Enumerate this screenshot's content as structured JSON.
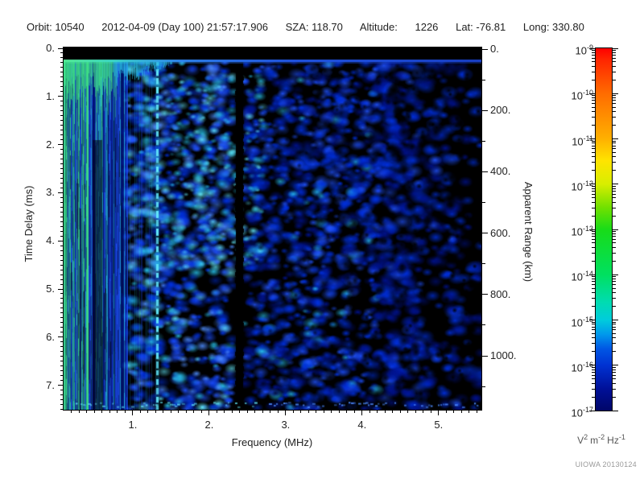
{
  "header": {
    "line": "Orbit: 10540      2012-04-09 (Day 100) 21:57:17.906      SZA: 118.70      Altitude:      1226      Lat: -76.81      Long: 330.80"
  },
  "chart_data": {
    "type": "heatmap",
    "xlabel": "Frequency (MHz)",
    "ylabel_left": "Time Delay (ms)",
    "ylabel_right": "Apparent Range (km)",
    "xlim_mhz": [
      0.1,
      5.56
    ],
    "ylim_left_ms": [
      0,
      7.5
    ],
    "ylim_right_km": [
      0,
      1180
    ],
    "x_ticks": {
      "values": [
        1,
        2,
        3,
        4,
        5
      ],
      "labels": [
        "1.",
        "2.",
        "3.",
        "4.",
        "5."
      ],
      "minor_step_mhz": 0.1
    },
    "y_left_ticks": {
      "values": [
        0,
        1,
        2,
        3,
        4,
        5,
        6,
        7
      ],
      "labels": [
        "0.",
        "1.",
        "2.",
        "3.",
        "4.",
        "5.",
        "6.",
        "7."
      ],
      "minor_step_ms": 0.1
    },
    "y_right_ticks": {
      "values": [
        0,
        200,
        400,
        600,
        800,
        1000
      ],
      "labels": [
        "0.",
        "200.",
        "400.",
        "600.",
        "800.",
        "1000."
      ],
      "minor_step_km": 100
    },
    "colorbar": {
      "scale": "log10",
      "max": "1e-9",
      "min": "1e-17",
      "base": "10",
      "exponents": [
        "-9",
        "-10",
        "-11",
        "-12",
        "-13",
        "-14",
        "-15",
        "-16",
        "-17"
      ],
      "units_text": "V2 m-2 Hz-1",
      "units_parts": [
        [
          "V",
          "2"
        ],
        [
          "m",
          "-2"
        ],
        [
          "Hz",
          "-1"
        ]
      ],
      "gradient": [
        [
          0,
          "#ff0000"
        ],
        [
          3,
          "#ff2400"
        ],
        [
          12.5,
          "#ff6c00"
        ],
        [
          25,
          "#ffb000"
        ],
        [
          31,
          "#ffe400"
        ],
        [
          37.5,
          "#d8ee00"
        ],
        [
          44,
          "#70e000"
        ],
        [
          50,
          "#18dc18"
        ],
        [
          62.5,
          "#00e060"
        ],
        [
          70,
          "#00dcb0"
        ],
        [
          75,
          "#00ccdc"
        ],
        [
          79,
          "#0098ec"
        ],
        [
          83,
          "#0056e4"
        ],
        [
          87.5,
          "#0032d2"
        ],
        [
          94,
          "#001098"
        ],
        [
          100,
          "#000668"
        ]
      ]
    },
    "heatmap_palette": {
      "background": "#000000",
      "deep_blue": "#001290",
      "blue": "#0030e0",
      "bright_blue": "#2052ff",
      "light_blue": "#4e8cff",
      "cyan": "#28c0ea",
      "bright_cyan": "#62e6f8",
      "green": "#3ee288"
    },
    "features": [
      "Dense vertical plasma-harmonic striping below ~0.9 MHz, bright green/cyan, strongest near top",
      "Bright horizontal echo line at ~0.25 ms time delay spanning all frequencies (green at left fading to blue at right)",
      "Dashed bright-cyan vertical interference line near 1.3 MHz",
      "Solid black attenuation band near 2.4 MHz",
      "Diffuse blue speckle noise floor (~1e-16 V2 m-2 Hz-1) fading to black above ~4 MHz",
      "Black band at top of plot for time delay < 0.2 ms",
      "Row of brighter cyan speckles along the bottom edge"
    ]
  },
  "watermark": "UIOWA 20130124"
}
